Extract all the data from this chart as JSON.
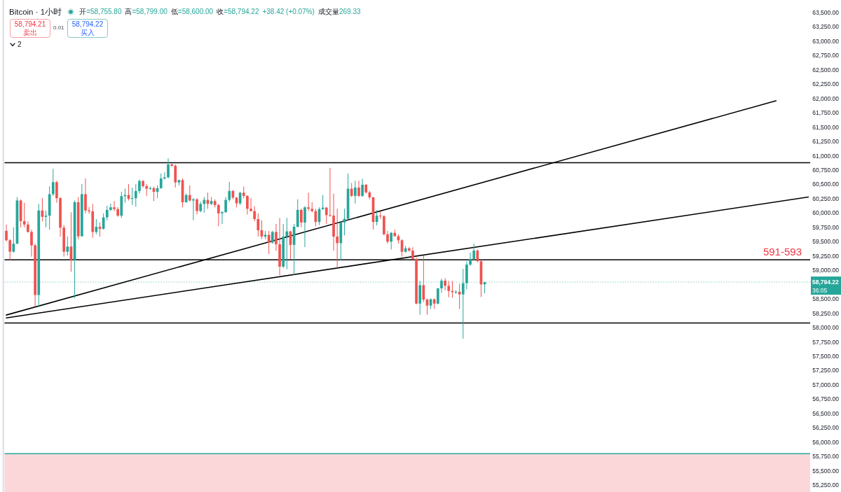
{
  "chart_data": {
    "type": "candlestick",
    "title": "Bitcoin · 1小时",
    "categories": [
      null,
      null,
      null,
      null,
      null,
      null,
      null,
      null,
      null,
      null,
      null,
      null,
      null,
      null,
      null,
      null,
      null,
      null,
      null,
      null,
      null,
      null,
      null,
      null,
      null,
      null,
      null,
      null,
      null,
      null,
      null,
      null,
      null,
      null,
      null,
      null,
      null,
      null,
      null,
      null,
      null,
      null,
      null,
      null,
      null,
      null,
      null,
      null,
      null,
      null,
      null,
      null,
      null,
      null,
      null,
      null,
      null,
      null,
      null,
      null,
      null,
      null,
      null,
      null,
      null,
      null,
      null,
      null,
      null,
      null,
      null,
      null,
      null,
      null,
      null,
      null,
      null,
      null,
      null,
      null,
      null,
      null,
      null,
      null,
      null,
      null,
      null,
      null,
      null,
      null,
      null,
      null,
      null,
      null,
      null,
      null,
      null,
      null,
      null,
      null,
      null,
      null,
      null,
      null,
      null,
      null,
      null,
      null,
      null,
      null,
      null,
      null,
      null,
      null,
      null,
      null,
      null,
      null,
      null,
      null,
      null,
      null,
      null,
      null,
      null,
      null,
      null,
      null,
      null,
      null,
      null,
      null,
      null,
      null,
      null,
      null,
      null,
      null,
      null,
      null,
      null,
      null,
      null,
      null,
      null,
      null,
      null,
      null,
      null,
      null,
      null,
      null,
      null,
      null,
      null,
      null,
      null,
      null,
      null,
      null,
      null,
      null,
      null,
      null,
      null,
      null,
      null,
      null,
      null,
      null,
      null,
      null,
      null,
      null,
      null,
      null,
      null,
      null,
      null,
      null,
      null,
      null,
      null,
      null,
      null,
      null,
      null,
      null,
      null,
      null,
      null,
      null,
      null,
      null,
      null,
      null,
      null,
      null,
      null,
      null,
      null,
      null,
      null,
      null,
      null,
      null,
      null,
      null,
      null,
      null,
      null,
      null,
      null,
      null,
      null,
      null,
      null,
      null,
      null,
      null,
      null,
      null,
      null,
      null
    ],
    "ohlc": [
      [
        59690,
        59800,
        59505,
        59525
      ],
      [
        59525,
        59545,
        59180,
        59325
      ],
      [
        59325,
        59750,
        59310,
        59465
      ],
      [
        59465,
        60280,
        59460,
        60220
      ],
      [
        60220,
        60240,
        59750,
        59860
      ],
      [
        59860,
        60180,
        59750,
        59800
      ],
      [
        59800,
        59855,
        59660,
        59670
      ],
      [
        59670,
        59710,
        59240,
        59435
      ],
      [
        59435,
        59465,
        58365,
        58570
      ],
      [
        58570,
        60160,
        58360,
        60045
      ],
      [
        60045,
        60260,
        59855,
        59935
      ],
      [
        59935,
        60045,
        59750,
        59955
      ],
      [
        59955,
        60465,
        59710,
        60330
      ],
      [
        60330,
        60770,
        60300,
        60540
      ],
      [
        60540,
        60565,
        60180,
        60260
      ],
      [
        60260,
        60280,
        59590,
        59745
      ],
      [
        59745,
        59790,
        59240,
        59325
      ],
      [
        59325,
        59590,
        59260,
        59415
      ],
      [
        59415,
        60015,
        58975,
        59180
      ],
      [
        59180,
        60220,
        58510,
        60190
      ],
      [
        60190,
        60280,
        59545,
        59595
      ],
      [
        59595,
        60505,
        59590,
        60330
      ],
      [
        60330,
        60605,
        59995,
        60045
      ],
      [
        60045,
        60105,
        59990,
        60030
      ],
      [
        60030,
        60160,
        59570,
        59670
      ],
      [
        59670,
        59895,
        59630,
        59760
      ],
      [
        59760,
        59835,
        59590,
        59725
      ],
      [
        59725,
        59995,
        59710,
        59925
      ],
      [
        59925,
        60125,
        59875,
        60055
      ],
      [
        60055,
        60165,
        60035,
        60100
      ],
      [
        60100,
        60210,
        60035,
        60070
      ],
      [
        60070,
        60105,
        59935,
        59955
      ],
      [
        59955,
        60370,
        59915,
        60295
      ],
      [
        60295,
        60425,
        60180,
        60315
      ],
      [
        60315,
        60505,
        60220,
        60250
      ],
      [
        60250,
        60445,
        60140,
        60260
      ],
      [
        60260,
        60505,
        60110,
        60385
      ],
      [
        60385,
        60585,
        60340,
        60560
      ],
      [
        60560,
        60575,
        60445,
        60470
      ],
      [
        60470,
        60505,
        60300,
        60425
      ],
      [
        60425,
        60465,
        60405,
        60435
      ],
      [
        60435,
        60465,
        60210,
        60370
      ],
      [
        60370,
        60485,
        60260,
        60435
      ],
      [
        60435,
        60690,
        60425,
        60605
      ],
      [
        60605,
        60710,
        60585,
        60625
      ],
      [
        60625,
        60955,
        60605,
        60850
      ],
      [
        60850,
        60865,
        60810,
        60825
      ],
      [
        60825,
        60850,
        60445,
        60535
      ],
      [
        60535,
        60585,
        60485,
        60575
      ],
      [
        60575,
        60605,
        60100,
        60190
      ],
      [
        60190,
        60340,
        60180,
        60315
      ],
      [
        60315,
        60485,
        60200,
        60220
      ],
      [
        60220,
        60260,
        59875,
        60240
      ],
      [
        60240,
        60260,
        59975,
        60035
      ],
      [
        60035,
        60200,
        60015,
        60160
      ],
      [
        60160,
        60280,
        60005,
        60230
      ],
      [
        60230,
        60355,
        60075,
        60160
      ],
      [
        60160,
        60280,
        60140,
        60210
      ],
      [
        60210,
        60240,
        60100,
        60140
      ],
      [
        60140,
        60160,
        59770,
        59995
      ],
      [
        59995,
        60035,
        59810,
        60015
      ],
      [
        60015,
        60280,
        60005,
        60230
      ],
      [
        60230,
        60545,
        60200,
        60385
      ],
      [
        60385,
        60405,
        60240,
        60270
      ],
      [
        60270,
        60280,
        60100,
        60170
      ],
      [
        60170,
        60370,
        60140,
        60355
      ],
      [
        60355,
        60465,
        60260,
        60300
      ],
      [
        60300,
        60310,
        59975,
        60075
      ],
      [
        60075,
        60260,
        60025,
        60035
      ],
      [
        60035,
        60120,
        59855,
        59895
      ],
      [
        59895,
        59995,
        59590,
        59700
      ],
      [
        59700,
        59875,
        59545,
        59590
      ],
      [
        59590,
        59690,
        59545,
        59620
      ],
      [
        59620,
        59690,
        59285,
        59485
      ],
      [
        59485,
        59690,
        59465,
        59670
      ],
      [
        59670,
        59810,
        59345,
        59455
      ],
      [
        59455,
        59915,
        58915,
        59065
      ],
      [
        59065,
        59810,
        59040,
        59590
      ],
      [
        59590,
        59915,
        59020,
        59680
      ],
      [
        59680,
        59690,
        59200,
        59445
      ],
      [
        59445,
        59810,
        58915,
        59760
      ],
      [
        59760,
        60240,
        59750,
        60055
      ],
      [
        60055,
        60075,
        59750,
        59835
      ],
      [
        59835,
        60120,
        59405,
        60100
      ],
      [
        60100,
        60355,
        60035,
        60075
      ],
      [
        60075,
        60190,
        60015,
        60035
      ],
      [
        60035,
        60075,
        59770,
        59845
      ],
      [
        59845,
        60100,
        59790,
        60070
      ],
      [
        60070,
        60315,
        60055,
        60095
      ],
      [
        60095,
        60105,
        59810,
        59965
      ],
      [
        59965,
        60790,
        59935,
        59955
      ],
      [
        59955,
        60340,
        59345,
        59590
      ],
      [
        59590,
        60075,
        59040,
        59475
      ],
      [
        59475,
        59855,
        59180,
        59835
      ],
      [
        59835,
        60075,
        59610,
        59900
      ],
      [
        59900,
        60690,
        59895,
        60425
      ],
      [
        60425,
        60525,
        60280,
        60300
      ],
      [
        60300,
        60565,
        60165,
        60445
      ],
      [
        60445,
        60565,
        60280,
        60300
      ],
      [
        60300,
        60600,
        60280,
        60495
      ],
      [
        60495,
        60505,
        60340,
        60360
      ],
      [
        60360,
        60385,
        60240,
        60275
      ],
      [
        60275,
        60280,
        59710,
        59845
      ],
      [
        59845,
        60055,
        59785,
        59955
      ],
      [
        59955,
        60025,
        59895,
        59945
      ],
      [
        59945,
        59965,
        59610,
        59630
      ],
      [
        59630,
        59690,
        59465,
        59500
      ],
      [
        59500,
        59670,
        59365,
        59655
      ],
      [
        59655,
        59710,
        59590,
        59595
      ],
      [
        59595,
        59630,
        59465,
        59525
      ],
      [
        59525,
        59545,
        59240,
        59325
      ],
      [
        59325,
        59425,
        59305,
        59385
      ],
      [
        59385,
        59405,
        59325,
        59345
      ],
      [
        59345,
        59405,
        59190,
        59200
      ],
      [
        59200,
        59220,
        58405,
        58420
      ],
      [
        58420,
        58815,
        58225,
        58740
      ],
      [
        58740,
        59260,
        58445,
        58490
      ],
      [
        58490,
        58510,
        58225,
        58385
      ],
      [
        58385,
        58510,
        58325,
        58495
      ],
      [
        58495,
        58510,
        58325,
        58420
      ],
      [
        58420,
        58690,
        58405,
        58685
      ],
      [
        58685,
        58855,
        58610,
        58820
      ],
      [
        58820,
        58865,
        58650,
        58730
      ],
      [
        58730,
        58815,
        58530,
        58640
      ],
      [
        58640,
        58815,
        58520,
        58620
      ],
      [
        58620,
        58650,
        58590,
        58625
      ],
      [
        58625,
        58765,
        58325,
        58580
      ],
      [
        58580,
        59025,
        57805,
        58775
      ],
      [
        58775,
        59160,
        58670,
        59100
      ],
      [
        59100,
        59310,
        59080,
        59200
      ],
      [
        59200,
        59465,
        59175,
        59345
      ],
      [
        59345,
        59365,
        59140,
        59160
      ],
      [
        59160,
        59180,
        58535,
        58755
      ],
      [
        58755.8,
        58799,
        58600,
        58794.22
      ],
      null,
      null,
      null,
      null,
      null,
      null,
      null,
      null,
      null,
      null,
      null,
      null,
      null,
      null,
      null,
      null,
      null,
      null,
      null,
      null,
      null,
      null,
      null,
      null,
      null,
      null,
      null,
      null,
      null,
      null,
      null,
      null,
      null,
      null,
      null,
      null,
      null,
      null,
      null,
      null,
      null,
      null,
      null,
      null,
      null,
      null,
      null,
      null,
      null,
      null,
      null,
      null,
      null,
      null,
      null,
      null,
      null,
      null,
      null,
      null,
      null,
      null,
      null,
      null,
      null,
      null,
      null,
      null,
      null,
      null,
      null,
      null,
      null,
      null,
      null,
      null,
      null,
      null,
      null,
      null,
      null,
      null,
      null,
      null,
      null,
      null,
      null,
      null,
      null,
      null
    ],
    "colors": [
      "#ef5350",
      "#ef5350",
      "#26a69a",
      "#26a69a",
      "#ef5350",
      "#ef5350",
      "#ef5350",
      "#ef5350",
      "#ef5350",
      "#26a69a",
      "#ef5350",
      "#26a69a",
      "#26a69a",
      "#26a69a",
      "#ef5350",
      "#ef5350",
      "#ef5350",
      "#26a69a",
      "#ef5350",
      "#26a69a",
      "#ef5350",
      "#26a69a",
      "#ef5350",
      "#ef5350",
      "#ef5350",
      "#26a69a",
      "#ef5350",
      "#26a69a",
      "#26a69a",
      "#26a69a",
      "#ef5350",
      "#ef5350",
      "#26a69a",
      "#26a69a",
      "#ef5350",
      "#26a69a",
      "#26a69a",
      "#26a69a",
      "#ef5350",
      "#ef5350",
      "#26a69a",
      "#ef5350",
      "#26a69a",
      "#26a69a",
      "#26a69a",
      "#26a69a",
      "#ef5350",
      "#ef5350",
      "#26a69a",
      "#ef5350",
      "#26a69a",
      "#ef5350",
      "#26a69a",
      "#ef5350",
      "#26a69a",
      "#26a69a",
      "#ef5350",
      "#26a69a",
      "#ef5350",
      "#ef5350",
      "#26a69a",
      "#26a69a",
      "#26a69a",
      "#ef5350",
      "#ef5350",
      "#26a69a",
      "#ef5350",
      "#ef5350",
      "#ef5350",
      "#ef5350",
      "#ef5350",
      "#ef5350",
      "#26a69a",
      "#ef5350",
      "#26a69a",
      "#ef5350",
      "#ef5350",
      "#26a69a",
      "#26a69a",
      "#ef5350",
      "#26a69a",
      "#26a69a",
      "#ef5350",
      "#26a69a",
      "#ef5350",
      "#ef5350",
      "#ef5350",
      "#26a69a",
      "#26a69a",
      "#ef5350",
      "#ef5350",
      "#ef5350",
      "#ef5350",
      "#26a69a",
      "#26a69a",
      "#26a69a",
      "#ef5350",
      "#26a69a",
      "#ef5350",
      "#26a69a",
      "#ef5350",
      "#ef5350",
      "#ef5350",
      "#26a69a",
      "#ef5350",
      "#ef5350",
      "#ef5350",
      "#26a69a",
      "#ef5350",
      "#ef5350",
      "#ef5350",
      "#26a69a",
      "#ef5350",
      "#ef5350",
      "#ef5350",
      "#26a69a",
      "#ef5350",
      "#ef5350",
      "#26a69a",
      "#ef5350",
      "#26a69a",
      "#26a69a",
      "#ef5350",
      "#ef5350",
      "#ef5350",
      "#26a69a",
      "#ef5350",
      "#26a69a",
      "#26a69a",
      "#26a69a",
      "#26a69a",
      "#ef5350",
      "#ef5350",
      "#26a69a",
      null,
      null,
      null,
      null,
      null,
      null,
      null,
      null,
      null,
      null,
      null,
      null,
      null,
      null,
      null,
      null,
      null,
      null,
      null,
      null,
      null,
      null,
      null,
      null,
      null,
      null,
      null,
      null,
      null,
      null,
      null,
      null,
      null,
      null,
      null,
      null,
      null,
      null,
      null,
      null,
      null,
      null,
      null,
      null,
      null,
      null,
      null,
      null,
      null,
      null,
      null,
      null,
      null,
      null,
      null,
      null,
      null,
      null,
      null,
      null,
      null,
      null,
      null,
      null,
      null,
      null,
      null,
      null,
      null,
      null,
      null,
      null,
      null,
      null,
      null,
      null,
      null,
      null,
      null,
      null,
      null,
      null,
      null,
      null,
      null,
      null,
      null,
      null,
      null,
      null
    ],
    "series": [
      {
        "type": "line",
        "color": "#000000",
        "values": [
          58220,
          null,
          null,
          null,
          null,
          null,
          null,
          null,
          null,
          null,
          null,
          null,
          null,
          null,
          null,
          null,
          null,
          null,
          null,
          null,
          null,
          null,
          null,
          null,
          null,
          null,
          null,
          null,
          null,
          null,
          null,
          null,
          null,
          null,
          null,
          null,
          null,
          null,
          null,
          null,
          null,
          null,
          null,
          null,
          null,
          null,
          null,
          null,
          null,
          null,
          null,
          null,
          null,
          null,
          null,
          null,
          null,
          null,
          null,
          null,
          null,
          null,
          null,
          null,
          null,
          null,
          null,
          null,
          null,
          null,
          null,
          null,
          null,
          null,
          null,
          null,
          null,
          null,
          null,
          null,
          null,
          null,
          null,
          null,
          null,
          null,
          null,
          null,
          null,
          null,
          null,
          null,
          null,
          null,
          null,
          null,
          null,
          null,
          null,
          null,
          null,
          null,
          null,
          null,
          null,
          null,
          null,
          null,
          null,
          null,
          null,
          null,
          null,
          null,
          null,
          null,
          null,
          null,
          null,
          null,
          null,
          null,
          null,
          null,
          null,
          null,
          null,
          null,
          null,
          null,
          null,
          null,
          null,
          null,
          null,
          null,
          null,
          null,
          null,
          null,
          null,
          null,
          null,
          null,
          null,
          null,
          null,
          null,
          null,
          null,
          null,
          null,
          null,
          null,
          null,
          null,
          null,
          null,
          null,
          null,
          null,
          null,
          null,
          null,
          null,
          null,
          null,
          null,
          null,
          null,
          null,
          null,
          null,
          null,
          null,
          null,
          null,
          null,
          null,
          null,
          null,
          null,
          null,
          null,
          null,
          null,
          null,
          null,
          null,
          null,
          null,
          null,
          null,
          null,
          null,
          null,
          null,
          null,
          null,
          null,
          null,
          null,
          null,
          null,
          null,
          null,
          null,
          null,
          null,
          null,
          null,
          null,
          null,
          null,
          61960,
          null,
          null,
          null,
          null,
          null,
          null,
          null,
          null,
          null
        ]
      },
      {
        "type": "line",
        "color": "#000000",
        "values": [
          58170,
          null,
          null,
          null,
          null,
          null,
          null,
          null,
          null,
          null,
          null,
          null,
          null,
          null,
          null,
          null,
          null,
          null,
          null,
          null,
          null,
          null,
          null,
          null,
          null,
          null,
          null,
          null,
          null,
          null,
          null,
          null,
          null,
          null,
          null,
          null,
          null,
          null,
          null,
          null,
          null,
          null,
          null,
          null,
          null,
          null,
          null,
          null,
          null,
          null,
          null,
          null,
          null,
          null,
          null,
          null,
          null,
          null,
          null,
          null,
          null,
          null,
          null,
          null,
          null,
          null,
          null,
          null,
          null,
          null,
          null,
          null,
          null,
          null,
          null,
          null,
          null,
          null,
          null,
          null,
          null,
          null,
          null,
          null,
          null,
          null,
          null,
          null,
          null,
          null,
          null,
          null,
          null,
          null,
          null,
          null,
          null,
          null,
          null,
          null,
          null,
          null,
          null,
          null,
          null,
          null,
          null,
          null,
          null,
          null,
          null,
          null,
          null,
          null,
          null,
          null,
          null,
          null,
          null,
          null,
          null,
          null,
          null,
          null,
          null,
          null,
          null,
          null,
          null,
          null,
          null,
          null,
          null,
          null,
          null,
          null,
          null,
          null,
          null,
          null,
          null,
          null,
          null,
          null,
          null,
          null,
          null,
          null,
          null,
          null,
          null,
          null,
          null,
          null,
          null,
          null,
          null,
          null,
          null,
          null,
          null,
          null,
          null,
          null,
          null,
          null,
          null,
          null,
          null,
          null,
          null,
          null,
          null,
          null,
          null,
          null,
          null,
          null,
          null,
          null,
          null,
          null,
          null,
          null,
          null,
          null,
          null,
          null,
          null,
          null,
          null,
          null,
          null,
          null,
          null,
          null,
          null,
          null,
          null,
          null,
          null,
          null,
          null,
          null,
          null,
          null,
          null,
          null,
          null,
          null,
          null,
          null,
          null,
          null,
          null,
          null,
          null,
          null,
          null,
          null,
          null,
          null,
          null,
          60280
        ]
      }
    ],
    "ylim": [
      55130,
      63720
    ],
    "yticks": [
      {
        "value": 55250,
        "label": "55,250.00"
      },
      {
        "value": 55500,
        "label": "55,500.00"
      },
      {
        "value": 55750,
        "label": "55,750.00"
      },
      {
        "value": 56000,
        "label": "56,000.00"
      },
      {
        "value": 56250,
        "label": "56,250.00"
      },
      {
        "value": 56500,
        "label": "56,500.00"
      },
      {
        "value": 56750,
        "label": "56,750.00"
      },
      {
        "value": 57000,
        "label": "57,000.00"
      },
      {
        "value": 57250,
        "label": "57,250.00"
      },
      {
        "value": 57500,
        "label": "57,500.00"
      },
      {
        "value": 57750,
        "label": "57,750.00"
      },
      {
        "value": 58000,
        "label": "58,000.00"
      },
      {
        "value": 58250,
        "label": "58,250.00"
      },
      {
        "value": 58500,
        "label": "58,500.00"
      },
      {
        "value": 59000,
        "label": "59,000.00"
      },
      {
        "value": 59250,
        "label": "59,250.00"
      },
      {
        "value": 59500,
        "label": "59,500.00"
      },
      {
        "value": 59750,
        "label": "59,750.00"
      },
      {
        "value": 60000,
        "label": "60,000.00"
      },
      {
        "value": 60250,
        "label": "60,250.00"
      },
      {
        "value": 60500,
        "label": "60,500.00"
      },
      {
        "value": 60750,
        "label": "60,750.00"
      },
      {
        "value": 61000,
        "label": "61,000.00"
      },
      {
        "value": 61250,
        "label": "61,250.00"
      },
      {
        "value": 61500,
        "label": "61,500.00"
      },
      {
        "value": 61750,
        "label": "61,750.00"
      },
      {
        "value": 62000,
        "label": "62,000.00"
      },
      {
        "value": 62250,
        "label": "62,250.00"
      },
      {
        "value": 62500,
        "label": "62,500.00"
      },
      {
        "value": 62750,
        "label": "62,750.00"
      },
      {
        "value": 63000,
        "label": "63,000.00"
      },
      {
        "value": 63250,
        "label": "63,250.00"
      },
      {
        "value": 63500,
        "label": "63,500.00"
      }
    ],
    "tick_labels": "y",
    "ref_lines": [
      {
        "axis": "y",
        "value": 60880,
        "color": "#000000"
      },
      {
        "axis": "y",
        "value": 59185,
        "color": "#000000"
      },
      {
        "axis": "y",
        "value": 58080,
        "color": "#000000"
      },
      {
        "axis": "y",
        "value": 55800,
        "color": "#26a69a"
      },
      {
        "axis": "y",
        "value": 58794.22,
        "label": "58,794.22",
        "color": "#26a69a",
        "line_style": "dotted"
      }
    ],
    "bands": [
      {
        "axis": "y",
        "from": 55130,
        "to": 55800,
        "color": "#fcd7da"
      }
    ],
    "annotations": [
      "开=58,755.80",
      "高=58,799.00",
      "低=58,600.00",
      "收=58,794.22",
      "+38.42 (+0.07%)",
      "成交量269.33",
      "58,794.21",
      "卖出",
      "0.01",
      "58,794.22",
      "买入",
      "2",
      "36:05",
      {
        "text": "591-593",
        "y": 59185
      }
    ]
  }
}
